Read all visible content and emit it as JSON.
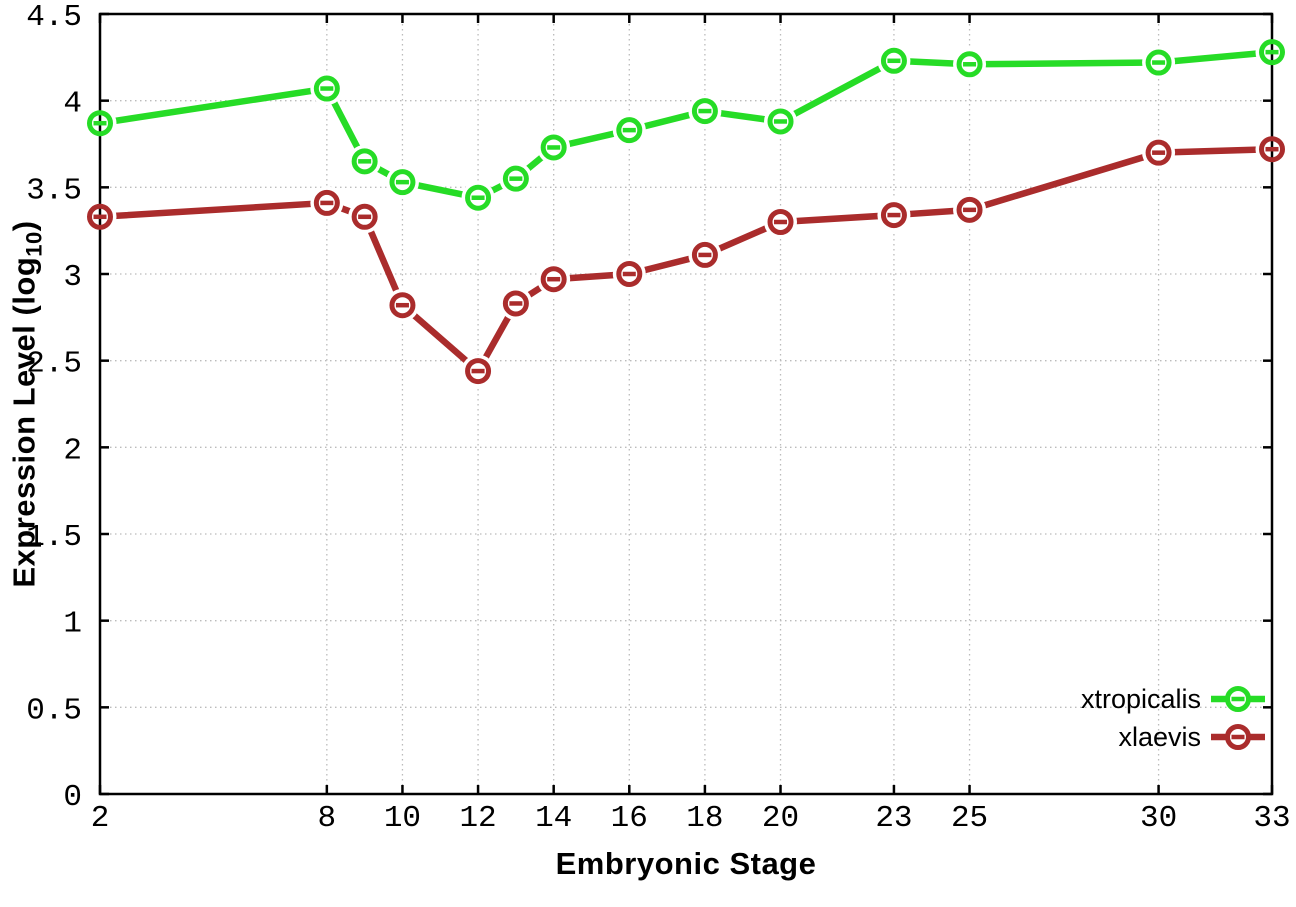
{
  "figure": {
    "background": "#ffffff",
    "x_axis_title": "Embryonic Stage",
    "y_axis_title_prefix": "Expression Level (log",
    "y_axis_title_sub": "10",
    "y_axis_title_suffix": ")"
  },
  "chart_data": {
    "type": "line",
    "title": "",
    "xlabel": "Embryonic Stage",
    "ylabel": "Expression Level (log10)",
    "xlim": [
      2,
      33
    ],
    "ylim": [
      0,
      4.5
    ],
    "grid": true,
    "grid_style": "dotted",
    "grid_color": "#bbbbbb",
    "axis_color": "#000000",
    "tick_direction": "in-mirrored",
    "legend_position": "bottom-right-inside",
    "marker": "open-circle-with-dash",
    "x": [
      2,
      8,
      9,
      10,
      12,
      13,
      14,
      16,
      18,
      20,
      23,
      25,
      30,
      33
    ],
    "x_ticks": [
      2,
      8,
      10,
      12,
      14,
      16,
      18,
      20,
      23,
      25,
      30,
      33
    ],
    "x_tick_labels": [
      "2",
      "8",
      "10",
      "12",
      "14",
      "16",
      "18",
      "20",
      "23",
      "25",
      "30",
      "33"
    ],
    "y_ticks": [
      0,
      0.5,
      1,
      1.5,
      2,
      2.5,
      3,
      3.5,
      4,
      4.5
    ],
    "y_tick_labels": [
      "0",
      "0.5",
      "1",
      "1.5",
      "2",
      "2.5",
      "3",
      "3.5",
      "4",
      "4.5"
    ],
    "series": [
      {
        "name": "xtropicalis",
        "color": "#26dc26",
        "values": [
          3.87,
          4.07,
          3.65,
          3.53,
          3.44,
          3.55,
          3.73,
          3.83,
          3.94,
          3.88,
          4.23,
          4.21,
          4.22,
          4.28
        ]
      },
      {
        "name": "xlaevis",
        "color": "#aa2c2c",
        "values": [
          3.33,
          3.41,
          3.33,
          2.82,
          2.44,
          2.83,
          2.97,
          3.0,
          3.11,
          3.3,
          3.34,
          3.37,
          3.7,
          3.72
        ]
      }
    ]
  }
}
